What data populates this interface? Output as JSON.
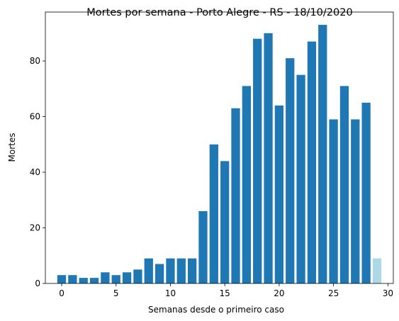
{
  "chart_data": {
    "type": "bar",
    "title": "Mortes por semana - Porto Alegre - RS - 18/10/2020",
    "xlabel": "Semanas desde o primeiro caso",
    "ylabel": "Mortes",
    "x": [
      0,
      1,
      2,
      3,
      4,
      5,
      6,
      7,
      8,
      9,
      10,
      11,
      12,
      13,
      14,
      15,
      16,
      17,
      18,
      19,
      20,
      21,
      22,
      23,
      24,
      25,
      26,
      27,
      28,
      29
    ],
    "values": [
      3,
      3,
      2,
      2,
      4,
      3,
      4,
      5,
      9,
      7,
      9,
      9,
      9,
      26,
      50,
      44,
      63,
      71,
      88,
      90,
      64,
      81,
      75,
      87,
      93,
      59,
      71,
      59,
      65,
      9
    ],
    "bar_colors": [
      "#1f77b4",
      "#1f77b4",
      "#1f77b4",
      "#1f77b4",
      "#1f77b4",
      "#1f77b4",
      "#1f77b4",
      "#1f77b4",
      "#1f77b4",
      "#1f77b4",
      "#1f77b4",
      "#1f77b4",
      "#1f77b4",
      "#1f77b4",
      "#1f77b4",
      "#1f77b4",
      "#1f77b4",
      "#1f77b4",
      "#1f77b4",
      "#1f77b4",
      "#1f77b4",
      "#1f77b4",
      "#1f77b4",
      "#1f77b4",
      "#1f77b4",
      "#1f77b4",
      "#1f77b4",
      "#1f77b4",
      "#1f77b4",
      "#add8e6"
    ],
    "xlim": [
      -1.5,
      30.5
    ],
    "ylim": [
      0,
      97.6
    ],
    "xticks": [
      0,
      5,
      10,
      15,
      20,
      25,
      30
    ],
    "yticks": [
      0,
      20,
      40,
      60,
      80
    ],
    "xtick_labels": [
      "0",
      "5",
      "10",
      "15",
      "20",
      "25",
      "30"
    ],
    "ytick_labels": [
      "0",
      "20",
      "40",
      "60",
      "80"
    ],
    "grid": false,
    "legend": null
  }
}
